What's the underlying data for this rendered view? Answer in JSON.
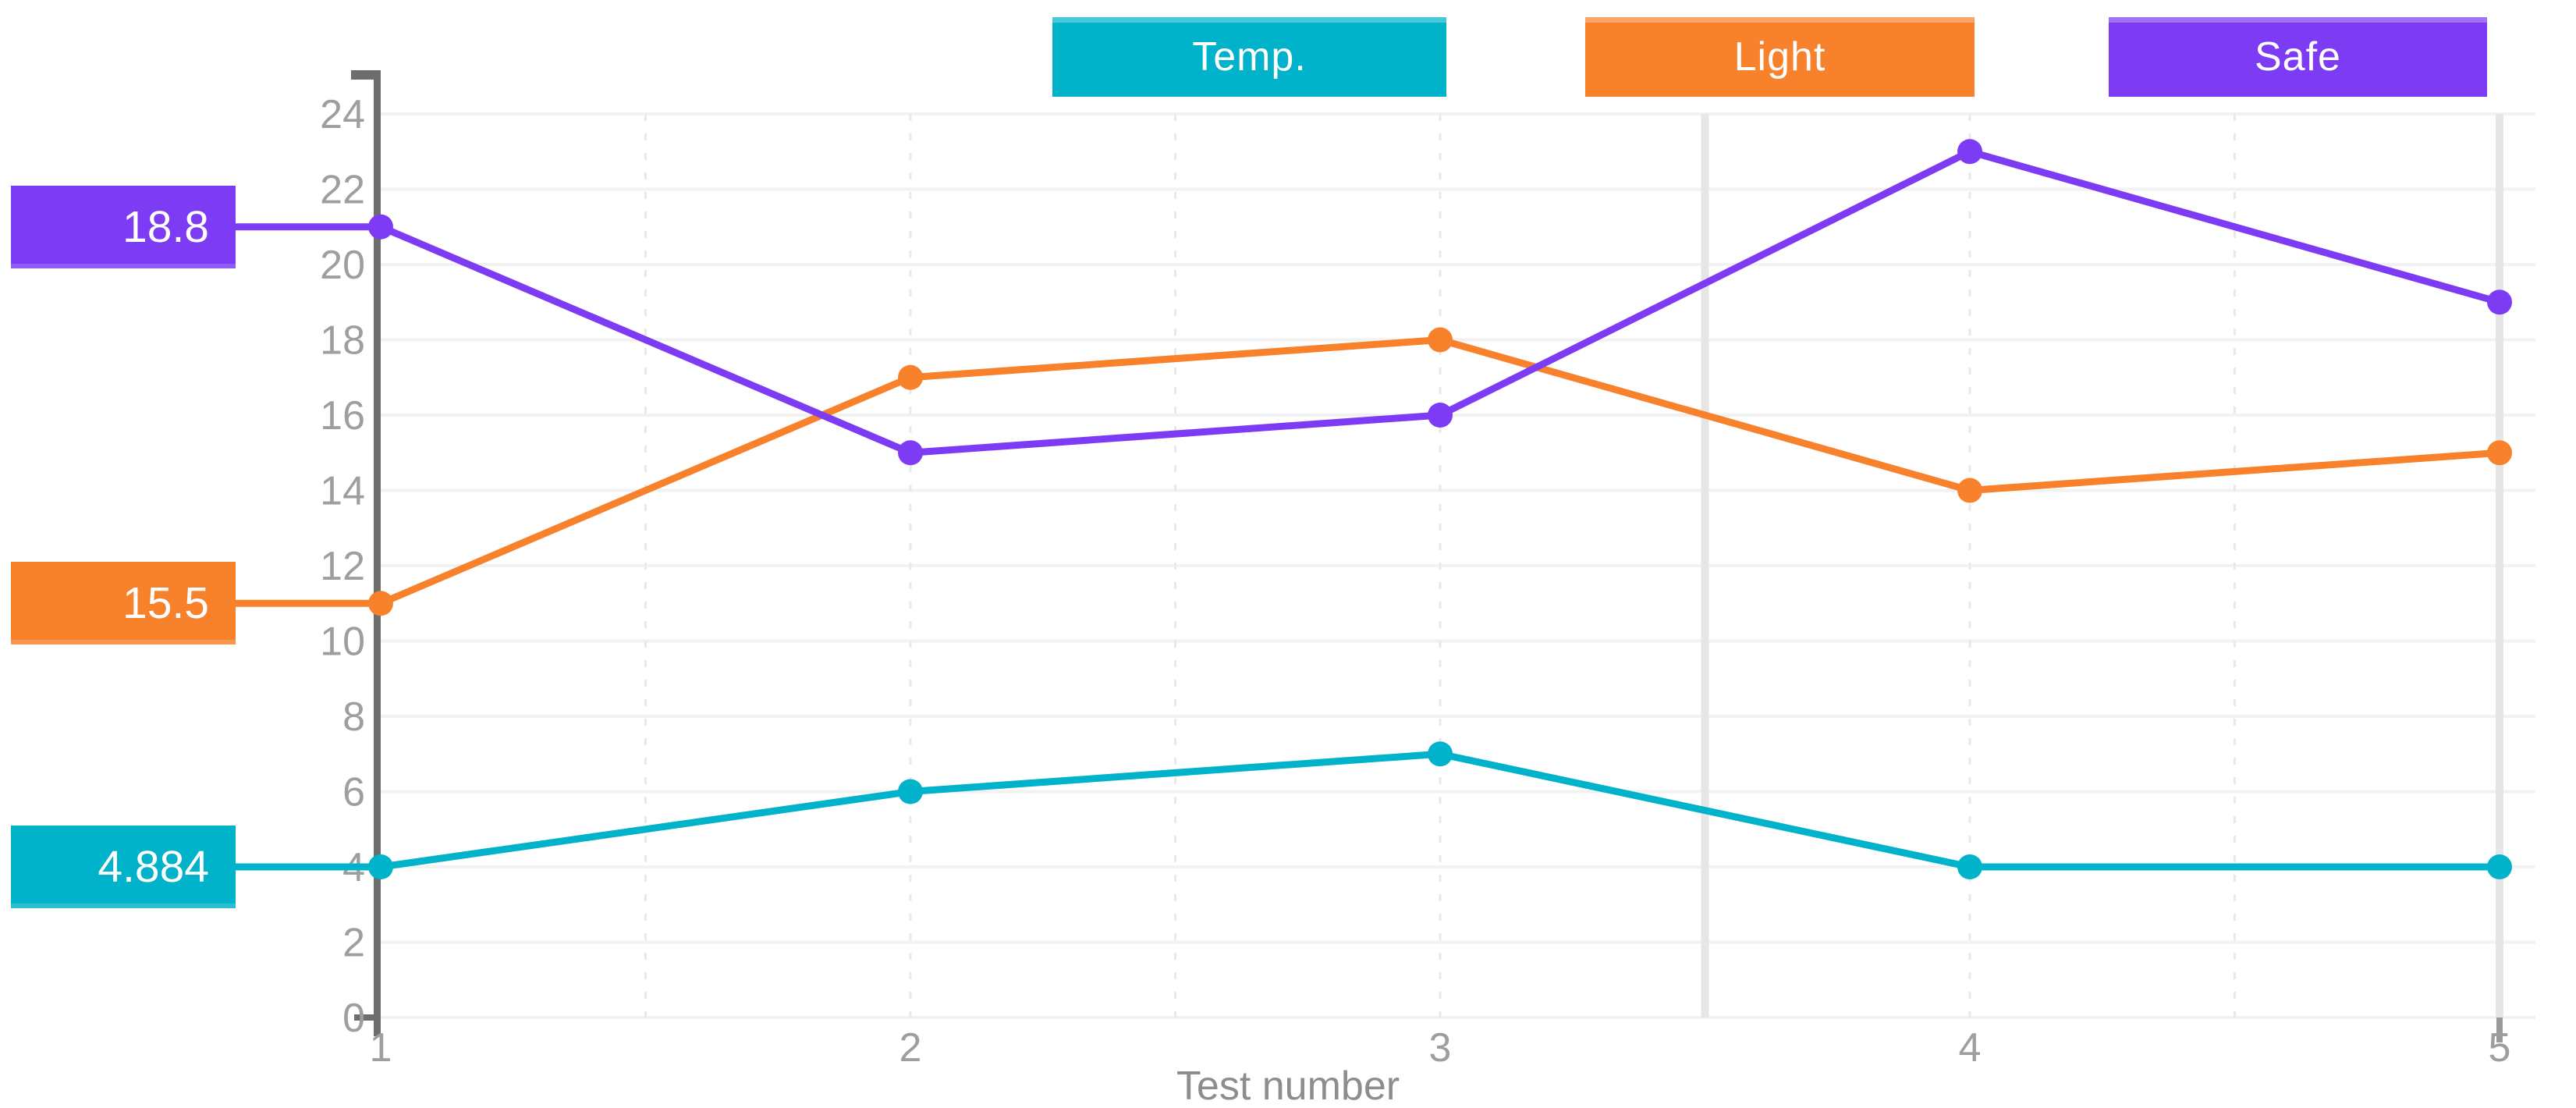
{
  "chart_data": {
    "type": "line",
    "title": "",
    "xlabel": "Test number",
    "ylabel": "",
    "categories": [
      "1",
      "2",
      "3",
      "4",
      "5"
    ],
    "ylim": [
      0,
      24
    ],
    "yticks": [
      0,
      2,
      4,
      6,
      8,
      10,
      12,
      14,
      16,
      18,
      20,
      22,
      24
    ],
    "legend_position": "top",
    "grid": {
      "horizontal": true,
      "vertical_dashed_at": [
        1.5,
        2,
        2.5,
        3,
        4,
        4.5
      ],
      "vertical_solid_at": [
        3.5,
        5
      ]
    },
    "series": [
      {
        "name": "Temp.",
        "color": "#00b2ca",
        "values": [
          4,
          6,
          7,
          4,
          4
        ],
        "callout": "4.884"
      },
      {
        "name": "Light",
        "color": "#f8812c",
        "values": [
          11,
          17,
          18,
          14,
          15
        ],
        "callout": "15.5"
      },
      {
        "name": "Safe",
        "color": "#7d3cf3",
        "values": [
          21,
          15,
          16,
          23,
          19
        ],
        "callout": "18.8"
      }
    ],
    "colors": {
      "axis": "#6d6d6d",
      "tick_label": "#9e9e9e",
      "axis_title": "#8d8d8d",
      "gridline": "#f2f2f2",
      "v_gridline_dashed": "#e9e9e9",
      "v_gridline_solid": "#e6e6e6",
      "background": "#ffffff"
    }
  }
}
